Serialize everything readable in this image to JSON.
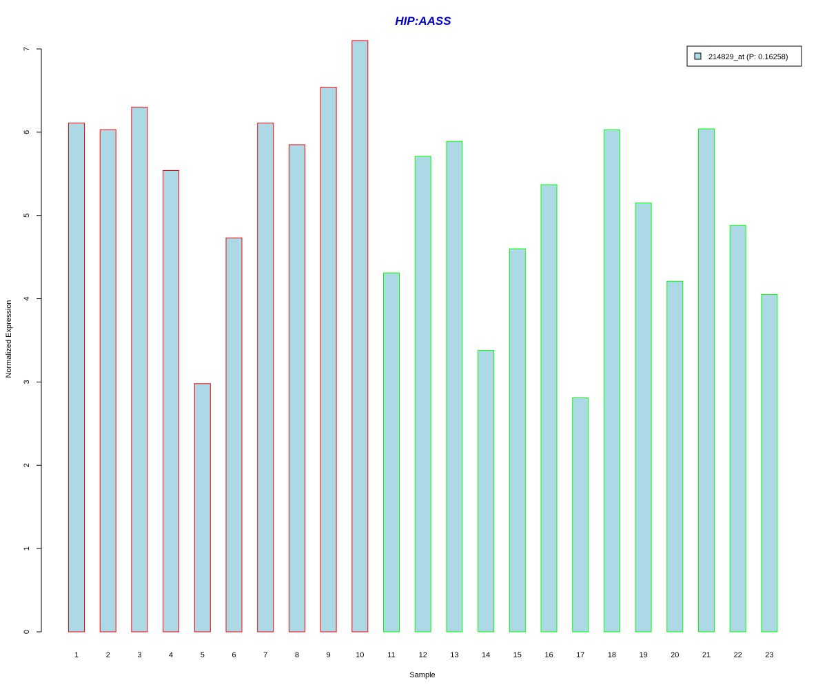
{
  "chart_data": {
    "type": "bar",
    "title": "HIP:AASS",
    "xlabel": "Sample",
    "ylabel": "Normalized Expression",
    "ylim": [
      0,
      7
    ],
    "y_ticks": [
      "0",
      "1",
      "2",
      "3",
      "4",
      "5",
      "6",
      "7"
    ],
    "categories": [
      "1",
      "2",
      "3",
      "4",
      "5",
      "6",
      "7",
      "8",
      "9",
      "10",
      "11",
      "12",
      "13",
      "14",
      "15",
      "16",
      "17",
      "18",
      "19",
      "20",
      "21",
      "22",
      "23"
    ],
    "series": [
      {
        "name": "214829_at (P: 0.16258)",
        "values": [
          6.11,
          6.03,
          6.3,
          5.54,
          2.98,
          4.73,
          6.11,
          5.85,
          6.54,
          7.1,
          4.31,
          5.71,
          5.89,
          3.38,
          4.6,
          5.37,
          2.81,
          6.03,
          5.15,
          4.21,
          6.04,
          4.88,
          4.05
        ],
        "fill_color": "#add8e6",
        "group_border_colors": [
          "#ff0000",
          "#ff0000",
          "#ff0000",
          "#ff0000",
          "#ff0000",
          "#ff0000",
          "#ff0000",
          "#ff0000",
          "#ff0000",
          "#ff0000",
          "#00ff00",
          "#00ff00",
          "#00ff00",
          "#00ff00",
          "#00ff00",
          "#00ff00",
          "#00ff00",
          "#00ff00",
          "#00ff00",
          "#00ff00",
          "#00ff00",
          "#00ff00",
          "#00ff00"
        ]
      }
    ],
    "legend": {
      "label": "214829_at (P: 0.16258)",
      "position": "top-right"
    },
    "grid": false,
    "colors": {
      "title": "#0000cd",
      "bar_fill": "#add8e6"
    }
  }
}
